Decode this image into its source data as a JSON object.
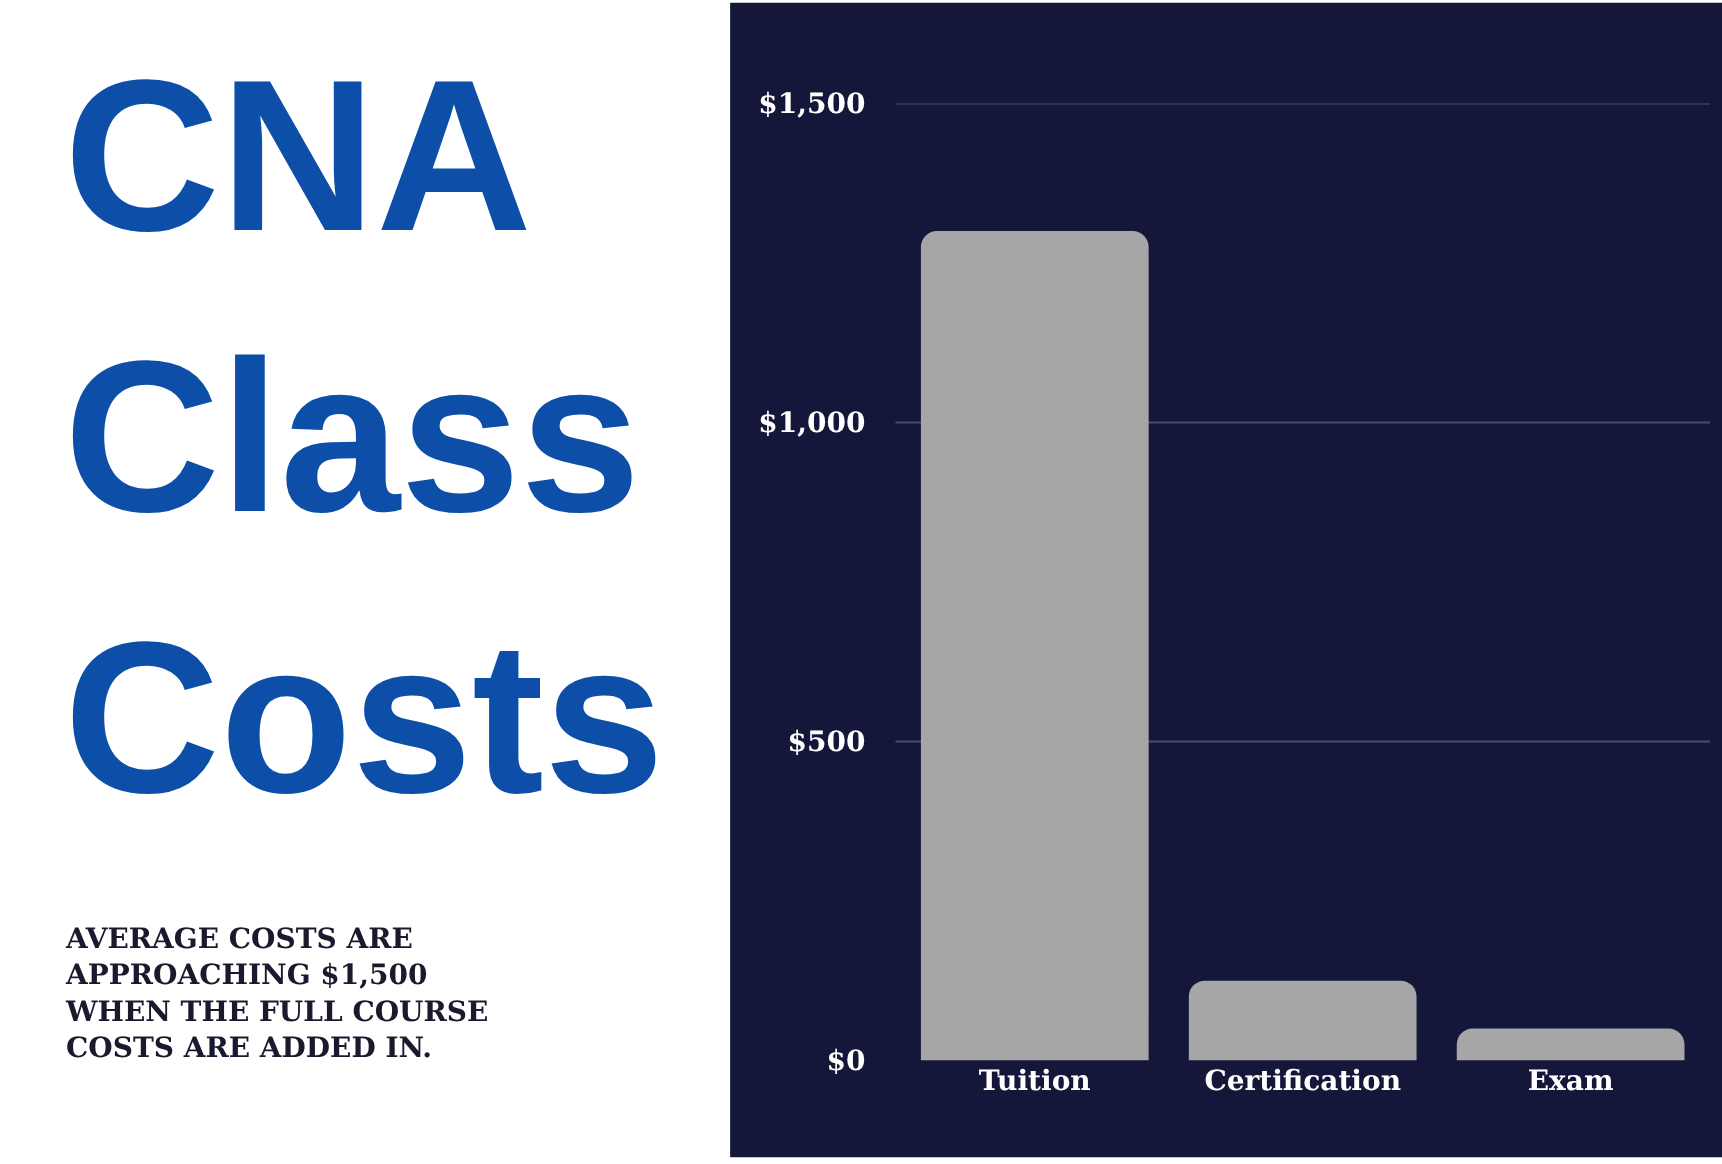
{
  "chart_data": {
    "type": "bar",
    "title": "CNA Class Costs",
    "subtitle": "AVERAGE COSTS ARE APPROACHING $1,500 WHEN THE FULL COURSE COSTS ARE ADDED IN.",
    "categories": [
      "Tuition",
      "Certification",
      "Exam"
    ],
    "values": [
      1300,
      125,
      50
    ],
    "color": "#a6a6a6",
    "ylim": [
      0,
      1500
    ],
    "yticks": [
      {
        "value": 0,
        "label": "$0"
      },
      {
        "value": 500,
        "label": "$500"
      },
      {
        "value": 1000,
        "label": "$1,000"
      },
      {
        "value": 1500,
        "label": "$1,500"
      }
    ],
    "grid": "y",
    "legend": false
  }
}
